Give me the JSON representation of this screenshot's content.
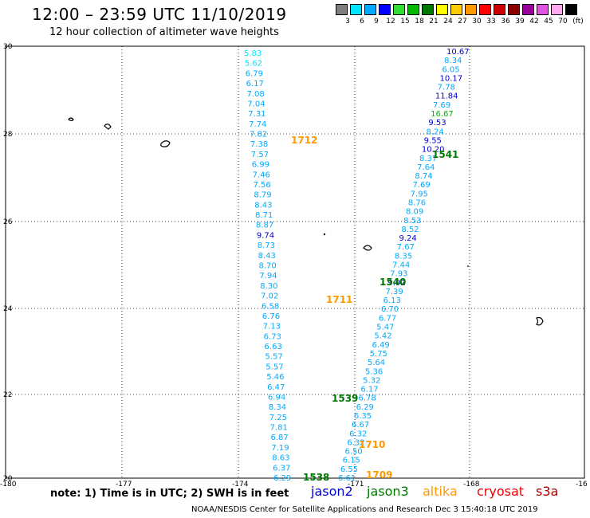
{
  "header": {
    "title": "12:00 – 23:59 UTC 11/10/2019",
    "subtitle": "12 hour collection of altimeter wave heights"
  },
  "colorbar": {
    "unit": "(ft)",
    "swatches": [
      {
        "color": "#7f7f7f",
        "label": "3"
      },
      {
        "color": "#00e5ff",
        "label": "6"
      },
      {
        "color": "#00aaff",
        "label": "9"
      },
      {
        "color": "#0000ff",
        "label": "12"
      },
      {
        "color": "#33dd33",
        "label": "15"
      },
      {
        "color": "#00bb00",
        "label": "18"
      },
      {
        "color": "#007700",
        "label": "21"
      },
      {
        "color": "#ffff00",
        "label": "24"
      },
      {
        "color": "#ffcc00",
        "label": "27"
      },
      {
        "color": "#ff9900",
        "label": "30"
      },
      {
        "color": "#ff0000",
        "label": "33"
      },
      {
        "color": "#cc0000",
        "label": "36"
      },
      {
        "color": "#880000",
        "label": "39"
      },
      {
        "color": "#990099",
        "label": "42"
      },
      {
        "color": "#dd55dd",
        "label": "45"
      },
      {
        "color": "#ffaaee",
        "label": "70"
      },
      {
        "color": "#000000",
        "label": ""
      }
    ]
  },
  "axes": {
    "lat_labels": [
      "30",
      "28",
      "26",
      "24",
      "22",
      "20"
    ],
    "lon_labels": [
      "-180",
      "-177",
      "-174",
      "-171",
      "-168",
      "-16"
    ]
  },
  "tracks": {
    "pass_1712": [
      {
        "v": "5.83",
        "c": "#00e5ff"
      },
      {
        "v": "5.62",
        "c": "#00e5ff"
      },
      {
        "v": "6.79",
        "c": "#00aaff"
      },
      {
        "v": "6.17",
        "c": "#00aaff"
      },
      {
        "v": "7.08",
        "c": "#00aaff"
      },
      {
        "v": "7.04",
        "c": "#00aaff"
      },
      {
        "v": "7.31",
        "c": "#00aaff"
      },
      {
        "v": "7.74",
        "c": "#00aaff"
      },
      {
        "v": "7.82",
        "c": "#00aaff"
      },
      {
        "v": "7.38",
        "c": "#00aaff"
      },
      {
        "v": "7.57",
        "c": "#00aaff"
      },
      {
        "v": "6.99",
        "c": "#00aaff"
      },
      {
        "v": "7.46",
        "c": "#00aaff"
      },
      {
        "v": "7.56",
        "c": "#00aaff"
      },
      {
        "v": "8.79",
        "c": "#00aaff"
      },
      {
        "v": "8.43",
        "c": "#00aaff"
      },
      {
        "v": "8.71",
        "c": "#00aaff"
      },
      {
        "v": "8.87",
        "c": "#00aaff"
      },
      {
        "v": "9.74",
        "c": "#0000cc"
      },
      {
        "v": "8.73",
        "c": "#00aaff"
      },
      {
        "v": "8.43",
        "c": "#00aaff"
      },
      {
        "v": "8.70",
        "c": "#00aaff"
      },
      {
        "v": "7.94",
        "c": "#00aaff"
      },
      {
        "v": "8.30",
        "c": "#00aaff"
      },
      {
        "v": "7.02",
        "c": "#00aaff"
      },
      {
        "v": "6.58",
        "c": "#00aaff"
      },
      {
        "v": "6.76",
        "c": "#00aaff"
      },
      {
        "v": "7.13",
        "c": "#00aaff"
      },
      {
        "v": "6.73",
        "c": "#00aaff"
      },
      {
        "v": "6.63",
        "c": "#00aaff"
      },
      {
        "v": "5.57",
        "c": "#00aaff"
      },
      {
        "v": "5.57",
        "c": "#00aaff"
      },
      {
        "v": "5.46",
        "c": "#00aaff"
      },
      {
        "v": "6.47",
        "c": "#00aaff"
      },
      {
        "v": "6.94",
        "c": "#00aaff"
      },
      {
        "v": "8.34",
        "c": "#00aaff"
      },
      {
        "v": "7.25",
        "c": "#00aaff"
      },
      {
        "v": "7.81",
        "c": "#00aaff"
      },
      {
        "v": "6.87",
        "c": "#00aaff"
      },
      {
        "v": "7.19",
        "c": "#00aaff"
      },
      {
        "v": "8.63",
        "c": "#00aaff"
      },
      {
        "v": "6.37",
        "c": "#00aaff"
      },
      {
        "v": "6.29",
        "c": "#00aaff"
      }
    ],
    "pass_1541": [
      {
        "v": "10.67",
        "c": "#0000cc"
      },
      {
        "v": "8.34",
        "c": "#00aaff"
      },
      {
        "v": "6.05",
        "c": "#00aaff"
      },
      {
        "v": "10.17",
        "c": "#0000cc"
      },
      {
        "v": "7.78",
        "c": "#00aaff"
      },
      {
        "v": "11.84",
        "c": "#0000cc"
      },
      {
        "v": "7.69",
        "c": "#00aaff"
      },
      {
        "v": "16.67",
        "c": "#00bb00"
      },
      {
        "v": "9.53",
        "c": "#0000cc"
      },
      {
        "v": "8.24",
        "c": "#00aaff"
      },
      {
        "v": "9.55",
        "c": "#0000cc"
      },
      {
        "v": "10.20",
        "c": "#0000cc"
      },
      {
        "v": "8.37",
        "c": "#00aaff"
      },
      {
        "v": "7.64",
        "c": "#00aaff"
      },
      {
        "v": "8.74",
        "c": "#00aaff"
      },
      {
        "v": "7.69",
        "c": "#00aaff"
      },
      {
        "v": "7.95",
        "c": "#00aaff"
      },
      {
        "v": "8.76",
        "c": "#00aaff"
      },
      {
        "v": "8.09",
        "c": "#00aaff"
      },
      {
        "v": "8.53",
        "c": "#00aaff"
      },
      {
        "v": "8.52",
        "c": "#00aaff"
      },
      {
        "v": "9.24",
        "c": "#0000cc"
      },
      {
        "v": "7.67",
        "c": "#00aaff"
      },
      {
        "v": "8.35",
        "c": "#00aaff"
      },
      {
        "v": "7.44",
        "c": "#00aaff"
      },
      {
        "v": "7.93",
        "c": "#00aaff"
      },
      {
        "v": "9.02",
        "c": "#0000cc"
      },
      {
        "v": "7.39",
        "c": "#00aaff"
      },
      {
        "v": "6.13",
        "c": "#00aaff"
      },
      {
        "v": "6.70",
        "c": "#00aaff"
      },
      {
        "v": "6.77",
        "c": "#00aaff"
      },
      {
        "v": "5.47",
        "c": "#00aaff"
      },
      {
        "v": "5.42",
        "c": "#00aaff"
      },
      {
        "v": "6.49",
        "c": "#00aaff"
      },
      {
        "v": "5.75",
        "c": "#00aaff"
      },
      {
        "v": "5.64",
        "c": "#00aaff"
      },
      {
        "v": "5.36",
        "c": "#00aaff"
      },
      {
        "v": "5.32",
        "c": "#00aaff"
      },
      {
        "v": "6.17",
        "c": "#00aaff"
      },
      {
        "v": "6.78",
        "c": "#00aaff"
      },
      {
        "v": "6.29",
        "c": "#00aaff"
      },
      {
        "v": "6.35",
        "c": "#00aaff"
      },
      {
        "v": "6.67",
        "c": "#00aaff"
      },
      {
        "v": "6.32",
        "c": "#00aaff"
      },
      {
        "v": "6.32",
        "c": "#00aaff"
      },
      {
        "v": "6.50",
        "c": "#00aaff"
      },
      {
        "v": "6.15",
        "c": "#00aaff"
      },
      {
        "v": "6.55",
        "c": "#00aaff"
      },
      {
        "v": "6.61",
        "c": "#00aaff"
      }
    ]
  },
  "pass_labels": [
    {
      "text": "1712",
      "color": "#ff9900"
    },
    {
      "text": "1541",
      "color": "#007700"
    },
    {
      "text": "1540",
      "color": "#007700"
    },
    {
      "text": "1711",
      "color": "#ff9900"
    },
    {
      "text": "1539",
      "color": "#007700"
    },
    {
      "text": "1710",
      "color": "#ff9900"
    },
    {
      "text": "1538",
      "color": "#007700"
    },
    {
      "text": "1709",
      "color": "#ff9900"
    }
  ],
  "footer": {
    "note": "note: 1) Time is in UTC; 2) SWH is in feet",
    "missions": [
      {
        "name": "jason2",
        "color": "#0000cc"
      },
      {
        "name": "jason3",
        "color": "#007700"
      },
      {
        "name": "altika",
        "color": "#ff9900"
      },
      {
        "name": "cryosat",
        "color": "#ee0000"
      },
      {
        "name": "s3a",
        "color": "#aa0000"
      }
    ],
    "credit": "NOAA/NESDIS Center for Satellite Applications and Research     Dec  3 15:40:18 UTC 2019"
  }
}
